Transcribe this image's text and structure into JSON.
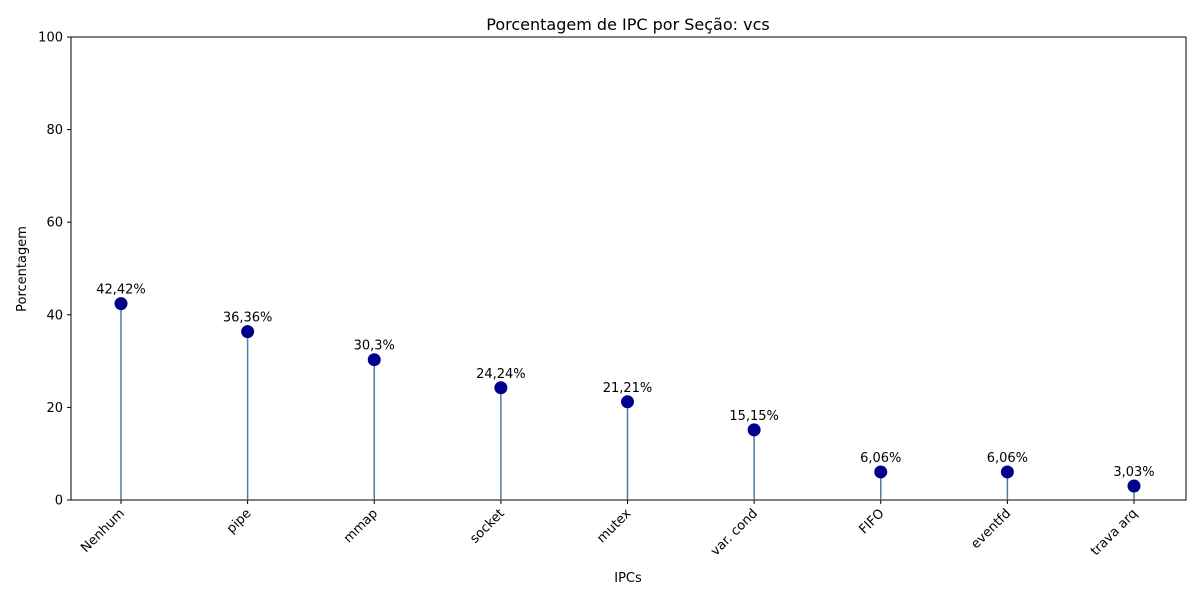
{
  "chart_data": {
    "type": "lollipop",
    "title": "Porcentagem de IPC por Seção: vcs",
    "xlabel": "IPCs",
    "ylabel": "Porcentagem",
    "ylim": [
      0,
      100
    ],
    "yticks": [
      0,
      20,
      40,
      60,
      80,
      100
    ],
    "categories": [
      "Nenhum",
      "pipe",
      "mmap",
      "socket",
      "mutex",
      "var. cond",
      "FIFO",
      "eventfd",
      "trava arq"
    ],
    "values": [
      42.42,
      36.36,
      30.3,
      24.24,
      21.21,
      15.15,
      6.06,
      6.06,
      3.03
    ],
    "value_labels": [
      "42,42%",
      "36,36%",
      "30,3%",
      "24,24%",
      "21,21%",
      "15,15%",
      "6,06%",
      "6,06%",
      "3,03%"
    ],
    "grid": false,
    "colors": {
      "marker": "#00008b",
      "stem": "#4f7ca3"
    }
  }
}
